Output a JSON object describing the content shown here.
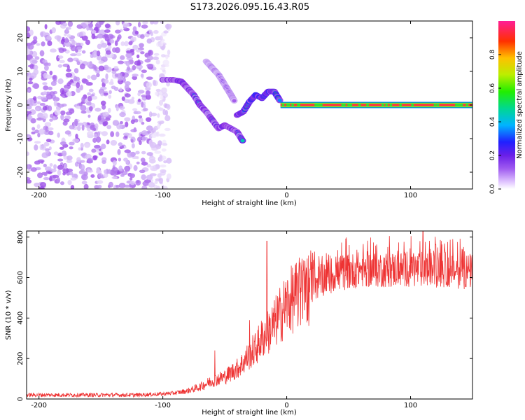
{
  "title": "S173.2026.095.16.43.R05",
  "chart_data": [
    {
      "type": "heatmap",
      "title": "S173.2026.095.16.43.R05",
      "xlabel": "Height of straight line (km)",
      "ylabel": "Frequency (Hz)",
      "xlim": [
        -210,
        150
      ],
      "ylim": [
        -25,
        25
      ],
      "xticks": [
        -200,
        -100,
        0,
        100
      ],
      "yticks": [
        -20,
        -10,
        0,
        10,
        20
      ],
      "colorbar": {
        "label": "Normalized spectral amplitude",
        "range": [
          0.0,
          1.0
        ],
        "ticks": [
          "0.0",
          "0.2",
          "0.4",
          "0.6",
          "0.8"
        ],
        "colors": [
          "#ffffff",
          "#c9a6f5",
          "#8a2be2",
          "#2222ff",
          "#00c8ff",
          "#00d070",
          "#44ee00",
          "#ccee00",
          "#ffbb00",
          "#ff3000",
          "#ff2090"
        ]
      },
      "features": [
        {
          "name": "noise",
          "x_range": [
            -210,
            -95
          ],
          "y_range": [
            -25,
            25
          ],
          "amplitude": 0.15
        },
        {
          "name": "descending branch",
          "x": [
            -100,
            -92,
            -85,
            -80,
            -75,
            -70,
            -65,
            -60,
            -55,
            -50,
            -45,
            -40,
            -35
          ],
          "y": [
            7.5,
            7.5,
            7,
            5,
            3,
            0,
            -2,
            -4.5,
            -7,
            -6,
            -7,
            -8,
            -11
          ],
          "amplitude": 0.35
        },
        {
          "name": "upper branch",
          "x": [
            -65,
            -60,
            -55,
            -50,
            -45,
            -42
          ],
          "y": [
            13,
            11,
            9,
            6,
            3,
            1
          ],
          "amplitude": 0.2
        },
        {
          "name": "central cluster",
          "x": [
            -40,
            -35,
            -30,
            -25,
            -20,
            -15,
            -10,
            -5
          ],
          "y": [
            -3,
            -2,
            1,
            3,
            2,
            4,
            4,
            1
          ],
          "amplitude": 0.45
        },
        {
          "name": "carrier line",
          "x_range": [
            -5,
            150
          ],
          "y": 0,
          "amplitude": 0.95
        }
      ]
    },
    {
      "type": "line",
      "xlabel": "Height of straight line (km)",
      "ylabel": "SNR (10 * v/v)",
      "xlim": [
        -210,
        150
      ],
      "ylim": [
        0,
        830
      ],
      "xticks": [
        -200,
        -100,
        0,
        100
      ],
      "yticks": [
        0,
        200,
        400,
        600,
        800
      ],
      "color": "#ee3333",
      "series": [
        {
          "name": "SNR",
          "x": [
            -210,
            -180,
            -150,
            -120,
            -100,
            -90,
            -80,
            -70,
            -60,
            -50,
            -40,
            -35,
            -30,
            -25,
            -20,
            -15,
            -10,
            -5,
            0,
            10,
            20,
            30,
            40,
            50,
            60,
            80,
            100,
            120,
            150
          ],
          "y": [
            20,
            20,
            20,
            20,
            25,
            30,
            40,
            60,
            90,
            110,
            150,
            180,
            220,
            250,
            300,
            330,
            370,
            420,
            470,
            520,
            560,
            600,
            620,
            630,
            640,
            640,
            640,
            640,
            630
          ],
          "peaks": [
            [
              -58,
              240
            ],
            [
              -30,
              390
            ],
            [
              -16,
              780
            ],
            [
              -5,
              500
            ],
            [
              110,
              830
            ]
          ]
        }
      ]
    }
  ]
}
